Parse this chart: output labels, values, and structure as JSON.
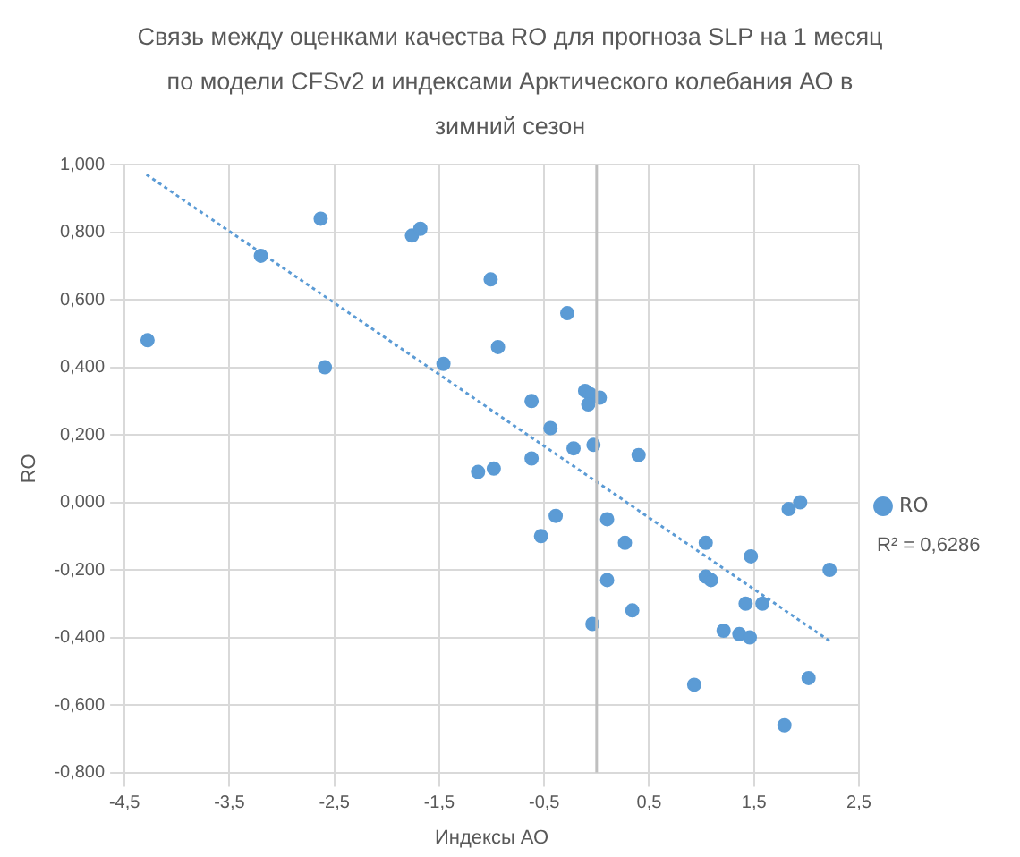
{
  "chart_data": {
    "type": "scatter",
    "title": "Связь между оценками качества RO для прогноза SLP на 1 месяц по модели CFSv2 и индексами Арктического колебания АО в зимний сезон",
    "xlabel": "Индексы АО",
    "ylabel": "RO",
    "series": [
      {
        "name": "RO",
        "type": "scatter",
        "color": "#5b9bd5",
        "marker": "circle",
        "x": [
          -4.28,
          -3.2,
          -2.63,
          -2.59,
          -1.76,
          -1.68,
          -1.46,
          -1.01,
          -0.28,
          -0.94,
          -0.62,
          -0.11,
          -0.06,
          0.03,
          -0.08,
          -0.44,
          -0.22,
          -0.03,
          0.4,
          -1.13,
          -0.98,
          -0.62,
          -0.39,
          -0.53,
          0.1,
          0.27,
          1.04,
          1.83,
          1.94,
          1.47,
          2.22,
          0.1,
          1.04,
          1.09,
          0.34,
          -0.04,
          1.42,
          1.58,
          1.21,
          1.36,
          1.46,
          2.02,
          0.93,
          1.79
        ],
        "values": [
          0.48,
          0.73,
          0.84,
          0.4,
          0.79,
          0.81,
          0.41,
          0.66,
          0.56,
          0.46,
          0.3,
          0.33,
          0.32,
          0.31,
          0.29,
          0.22,
          0.16,
          0.17,
          0.14,
          0.09,
          0.1,
          0.13,
          -0.04,
          -0.1,
          -0.05,
          -0.12,
          -0.12,
          -0.02,
          0,
          -0.16,
          -0.2,
          -0.23,
          -0.22,
          -0.23,
          -0.32,
          -0.36,
          -0.3,
          -0.3,
          -0.38,
          -0.39,
          -0.4,
          -0.52,
          -0.54,
          -0.66
        ]
      },
      {
        "type": "line",
        "color": "#5b9bd5",
        "line_style": "dotted",
        "marker": "none",
        "x": [
          -4.29,
          2.22
        ],
        "values": [
          0.97,
          -0.41
        ]
      }
    ],
    "xlim": [
      -4.5,
      2.5
    ],
    "xticks": [
      {
        "value": -4.5,
        "label": "-4,5"
      },
      {
        "value": -3.5,
        "label": "-3,5"
      },
      {
        "value": -2.5,
        "label": "-2,5"
      },
      {
        "value": -1.5,
        "label": "-1,5"
      },
      {
        "value": -0.5,
        "label": "-0,5"
      },
      {
        "value": 0.5,
        "label": "0,5"
      },
      {
        "value": 1.5,
        "label": "1,5"
      },
      {
        "value": 2.5,
        "label": "2,5"
      }
    ],
    "ylim": [
      -0.8,
      1
    ],
    "yticks": [
      {
        "value": -0.8,
        "label": "-0,800"
      },
      {
        "value": -0.6,
        "label": "-0,600"
      },
      {
        "value": -0.4,
        "label": "-0,400"
      },
      {
        "value": -0.2,
        "label": "-0,200"
      },
      {
        "value": 0,
        "label": "0,000"
      },
      {
        "value": 0.2,
        "label": "0,200"
      },
      {
        "value": 0.4,
        "label": "0,400"
      },
      {
        "value": 0.6,
        "label": "0,600"
      },
      {
        "value": 0.8,
        "label": "0,800"
      },
      {
        "value": 1,
        "label": "1,000"
      }
    ],
    "ref_lines": [
      {
        "axis": "x",
        "value": 0,
        "color": "#bfbfbf"
      }
    ],
    "annotations": [
      "R² = 0,6286"
    ],
    "grid": true,
    "legend": "right"
  }
}
